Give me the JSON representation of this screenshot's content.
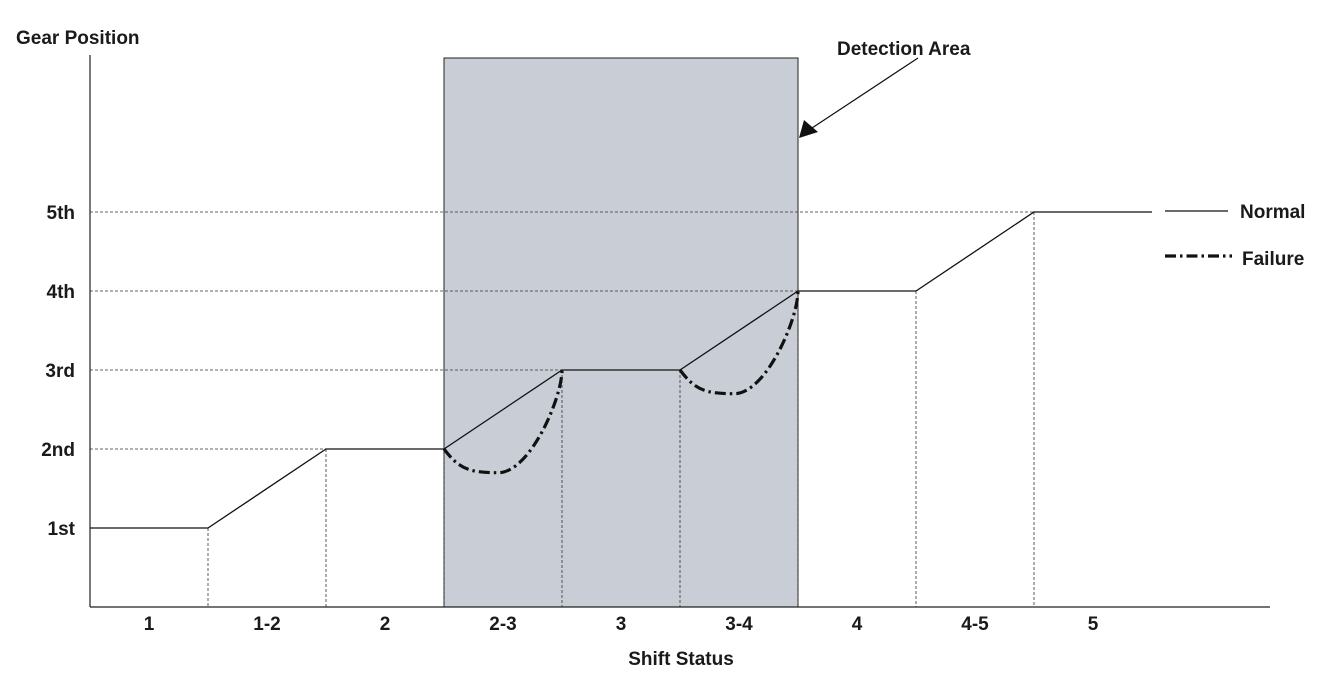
{
  "chart_data": {
    "type": "line",
    "ylabel": "Gear Position",
    "xlabel": "Shift Status",
    "categories": [
      "1",
      "1-2",
      "2",
      "2-3",
      "3",
      "3-4",
      "4",
      "4-5",
      "5"
    ],
    "gears": [
      "1st",
      "2nd",
      "3rd",
      "4th",
      "5th"
    ],
    "series": [
      {
        "name": "Normal",
        "style": "solid",
        "color": "#111111",
        "points": [
          [
            0,
            1
          ],
          [
            1,
            1
          ],
          [
            2,
            2
          ],
          [
            3,
            2
          ],
          [
            4,
            3
          ],
          [
            5,
            3
          ],
          [
            6,
            4
          ],
          [
            7,
            4
          ],
          [
            8,
            5
          ],
          [
            9,
            5
          ]
        ]
      },
      {
        "name": "Failure",
        "style": "dash-dot",
        "color": "#111111",
        "segments": [
          {
            "from": [
              3,
              2
            ],
            "dip": 1.7,
            "to": [
              4,
              3
            ]
          },
          {
            "from": [
              5,
              3
            ],
            "dip": 2.7,
            "to": [
              6,
              4
            ]
          }
        ]
      }
    ],
    "shaded_region": {
      "x_range": [
        3,
        6
      ],
      "color": "#c9ced6"
    },
    "annotation": {
      "text": "Detection Area"
    },
    "legend": {
      "placement": "right",
      "entries": [
        "Normal",
        "Failure"
      ]
    },
    "grid": false
  }
}
